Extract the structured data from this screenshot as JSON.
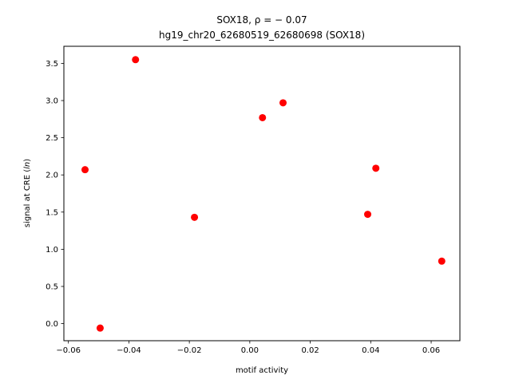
{
  "chart_data": {
    "type": "scatter",
    "title_line1": "SOX18, ρ = − 0.07",
    "title_line2": "hg19_chr20_62680519_62680698 (SOX18)",
    "xlabel": "motif activity",
    "ylabel": "signal at CRE (ln)",
    "xlim": [
      -0.0615,
      0.0695
    ],
    "ylim": [
      -0.23,
      3.73
    ],
    "x_ticks": [
      -0.06,
      -0.04,
      -0.02,
      0.0,
      0.02,
      0.04,
      0.06
    ],
    "x_tick_labels": [
      "−0.06",
      "−0.04",
      "−0.02",
      "0.00",
      "0.02",
      "0.04",
      "0.06"
    ],
    "y_ticks": [
      0.0,
      0.5,
      1.0,
      1.5,
      2.0,
      2.5,
      3.0,
      3.5
    ],
    "y_tick_labels": [
      "0.0",
      "0.5",
      "1.0",
      "1.5",
      "2.0",
      "2.5",
      "3.0",
      "3.5"
    ],
    "grid": false,
    "marker_color": "#ff0000",
    "points": [
      {
        "x": -0.0545,
        "y": 2.07
      },
      {
        "x": -0.0495,
        "y": -0.06
      },
      {
        "x": -0.0378,
        "y": 3.55
      },
      {
        "x": -0.0183,
        "y": 1.43
      },
      {
        "x": 0.0042,
        "y": 2.77
      },
      {
        "x": 0.011,
        "y": 2.97
      },
      {
        "x": 0.039,
        "y": 1.47
      },
      {
        "x": 0.0417,
        "y": 2.09
      },
      {
        "x": 0.0635,
        "y": 0.84
      }
    ]
  }
}
